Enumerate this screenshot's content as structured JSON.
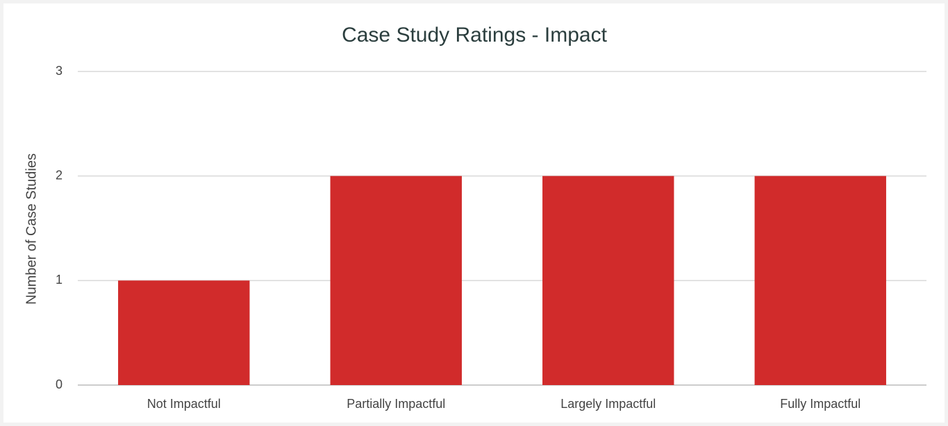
{
  "chart_data": {
    "type": "bar",
    "title": "Case Study Ratings - Impact",
    "y_label": "Number of Case Studies",
    "categories": [
      "Not Impactful",
      "Partially Impactful",
      "Largely Impactful",
      "Fully Impactful"
    ],
    "values": [
      1,
      2,
      2,
      2
    ],
    "color": "#d12b2b",
    "ylim": [
      0,
      3
    ],
    "yticks": [
      0,
      1,
      2,
      3
    ],
    "grid": true
  }
}
